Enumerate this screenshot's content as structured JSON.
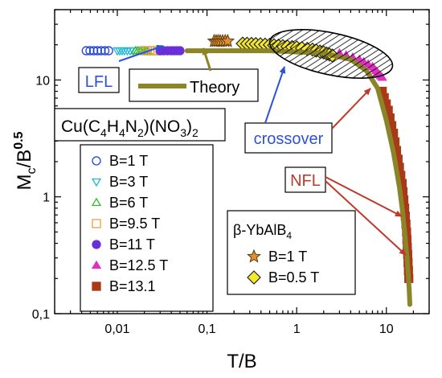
{
  "chart_data": {
    "type": "scatter",
    "title": "",
    "xlabel": "T/B",
    "ylabel_main": "M",
    "ylabel_sub": "c",
    "ylabel_rest": "/B",
    "ylabel_sup": "0.5",
    "xscale": "log",
    "yscale": "log",
    "xlim": [
      0.002,
      30
    ],
    "ylim": [
      0.1,
      40
    ],
    "x_ticks": [
      {
        "v": 0.01,
        "label": "0,01"
      },
      {
        "v": 0.1,
        "label": "0,1"
      },
      {
        "v": 1,
        "label": "1"
      },
      {
        "v": 10,
        "label": "10"
      }
    ],
    "y_ticks": [
      {
        "v": 0.1,
        "label": "0,1"
      },
      {
        "v": 1,
        "label": "1"
      },
      {
        "v": 10,
        "label": "10"
      }
    ],
    "grid": false,
    "compound": {
      "parts": [
        {
          "t": "Cu(C",
          "s": "n"
        },
        {
          "t": "4",
          "s": "sub"
        },
        {
          "t": "H",
          "s": "n"
        },
        {
          "t": "4",
          "s": "sub"
        },
        {
          "t": "N",
          "s": "n"
        },
        {
          "t": "2",
          "s": "sub"
        },
        {
          "t": ")(NO",
          "s": "n"
        },
        {
          "t": "3",
          "s": "sub"
        },
        {
          "t": ")",
          "s": "n"
        },
        {
          "t": "2",
          "s": "sub"
        }
      ]
    },
    "legend_cu": [
      {
        "label": "B=1 T",
        "marker": "circle-open",
        "color": "#1f3fd6"
      },
      {
        "label": "B=3 T",
        "marker": "triangle-down-open",
        "color": "#20b8d8"
      },
      {
        "label": "B=6 T",
        "marker": "triangle-up-open",
        "color": "#2fb82f"
      },
      {
        "label": "B=9.5 T",
        "marker": "square-open",
        "color": "#e8a040"
      },
      {
        "label": "B=11 T",
        "marker": "circle-filled",
        "color": "#6a2fd8"
      },
      {
        "label": "B=12.5 T",
        "marker": "triangle-up-filled",
        "color": "#e030c0"
      },
      {
        "label": "B=13.1",
        "marker": "square-filled",
        "color": "#a83a18"
      }
    ],
    "legend_yb": {
      "title_greek": "β",
      "title_main": "-YbAlB",
      "title_sub": "4",
      "items": [
        {
          "label": "B=1 T",
          "marker": "star",
          "color": "#e09030"
        },
        {
          "label": "B=0.5 T",
          "marker": "diamond",
          "color": "#f4e830"
        }
      ]
    },
    "annotations": {
      "lfl": "LFL",
      "theory": "Theory",
      "crossover": "crossover",
      "nfl": "NFL"
    },
    "theory_curve": {
      "name": "Theory",
      "color": "#8b8428",
      "x": [
        0.06,
        0.5,
        2,
        4,
        6,
        8,
        10,
        12,
        14,
        15,
        16,
        17,
        17.5,
        18,
        18.3
      ],
      "y": [
        17.8,
        17.8,
        17.0,
        15.0,
        12.0,
        8.5,
        4.5,
        2.4,
        1.2,
        0.8,
        0.5,
        0.3,
        0.22,
        0.16,
        0.12
      ]
    },
    "series": [
      {
        "name": "B=1 T",
        "x": [
          0.0045,
          0.006,
          0.008
        ],
        "y": [
          17.8,
          17.8,
          17.8
        ]
      },
      {
        "name": "B=3 T",
        "x": [
          0.01,
          0.012,
          0.015
        ],
        "y": [
          17.8,
          17.8,
          17.8
        ]
      },
      {
        "name": "B=6 T",
        "x": [
          0.016,
          0.019,
          0.022
        ],
        "y": [
          17.8,
          17.8,
          17.8
        ]
      },
      {
        "name": "B=9.5 T",
        "x": [
          0.02,
          0.025,
          0.03
        ],
        "y": [
          17.8,
          17.8,
          17.8
        ]
      },
      {
        "name": "B=11 T",
        "x": [
          0.03,
          0.04,
          0.05
        ],
        "y": [
          17.8,
          17.8,
          17.8
        ]
      },
      {
        "name": "B=12.5 T",
        "x": [
          3,
          5,
          7,
          8,
          9
        ],
        "y": [
          17.0,
          15.0,
          13.0,
          11.5,
          10.5
        ]
      },
      {
        "name": "B=13.1",
        "x": [
          9,
          10.5,
          12,
          13.5,
          15,
          16,
          16.8,
          17.3,
          17.8
        ],
        "y": [
          8.0,
          5.5,
          3.5,
          2.1,
          1.3,
          0.8,
          0.5,
          0.32,
          0.2
        ]
      },
      {
        "name": "β-YbAlB4 B=1 T",
        "x": [
          0.12,
          0.14,
          0.17
        ],
        "y": [
          21.5,
          21.5,
          21.5
        ]
      },
      {
        "name": "β-YbAlB4 B=0.5 T",
        "x": [
          0.25,
          0.35,
          0.5,
          0.7,
          1.0,
          1.5,
          2.0,
          2.5
        ],
        "y": [
          20.5,
          20.3,
          20.0,
          19.5,
          19.0,
          18.2,
          17.2,
          16.2
        ]
      }
    ]
  }
}
